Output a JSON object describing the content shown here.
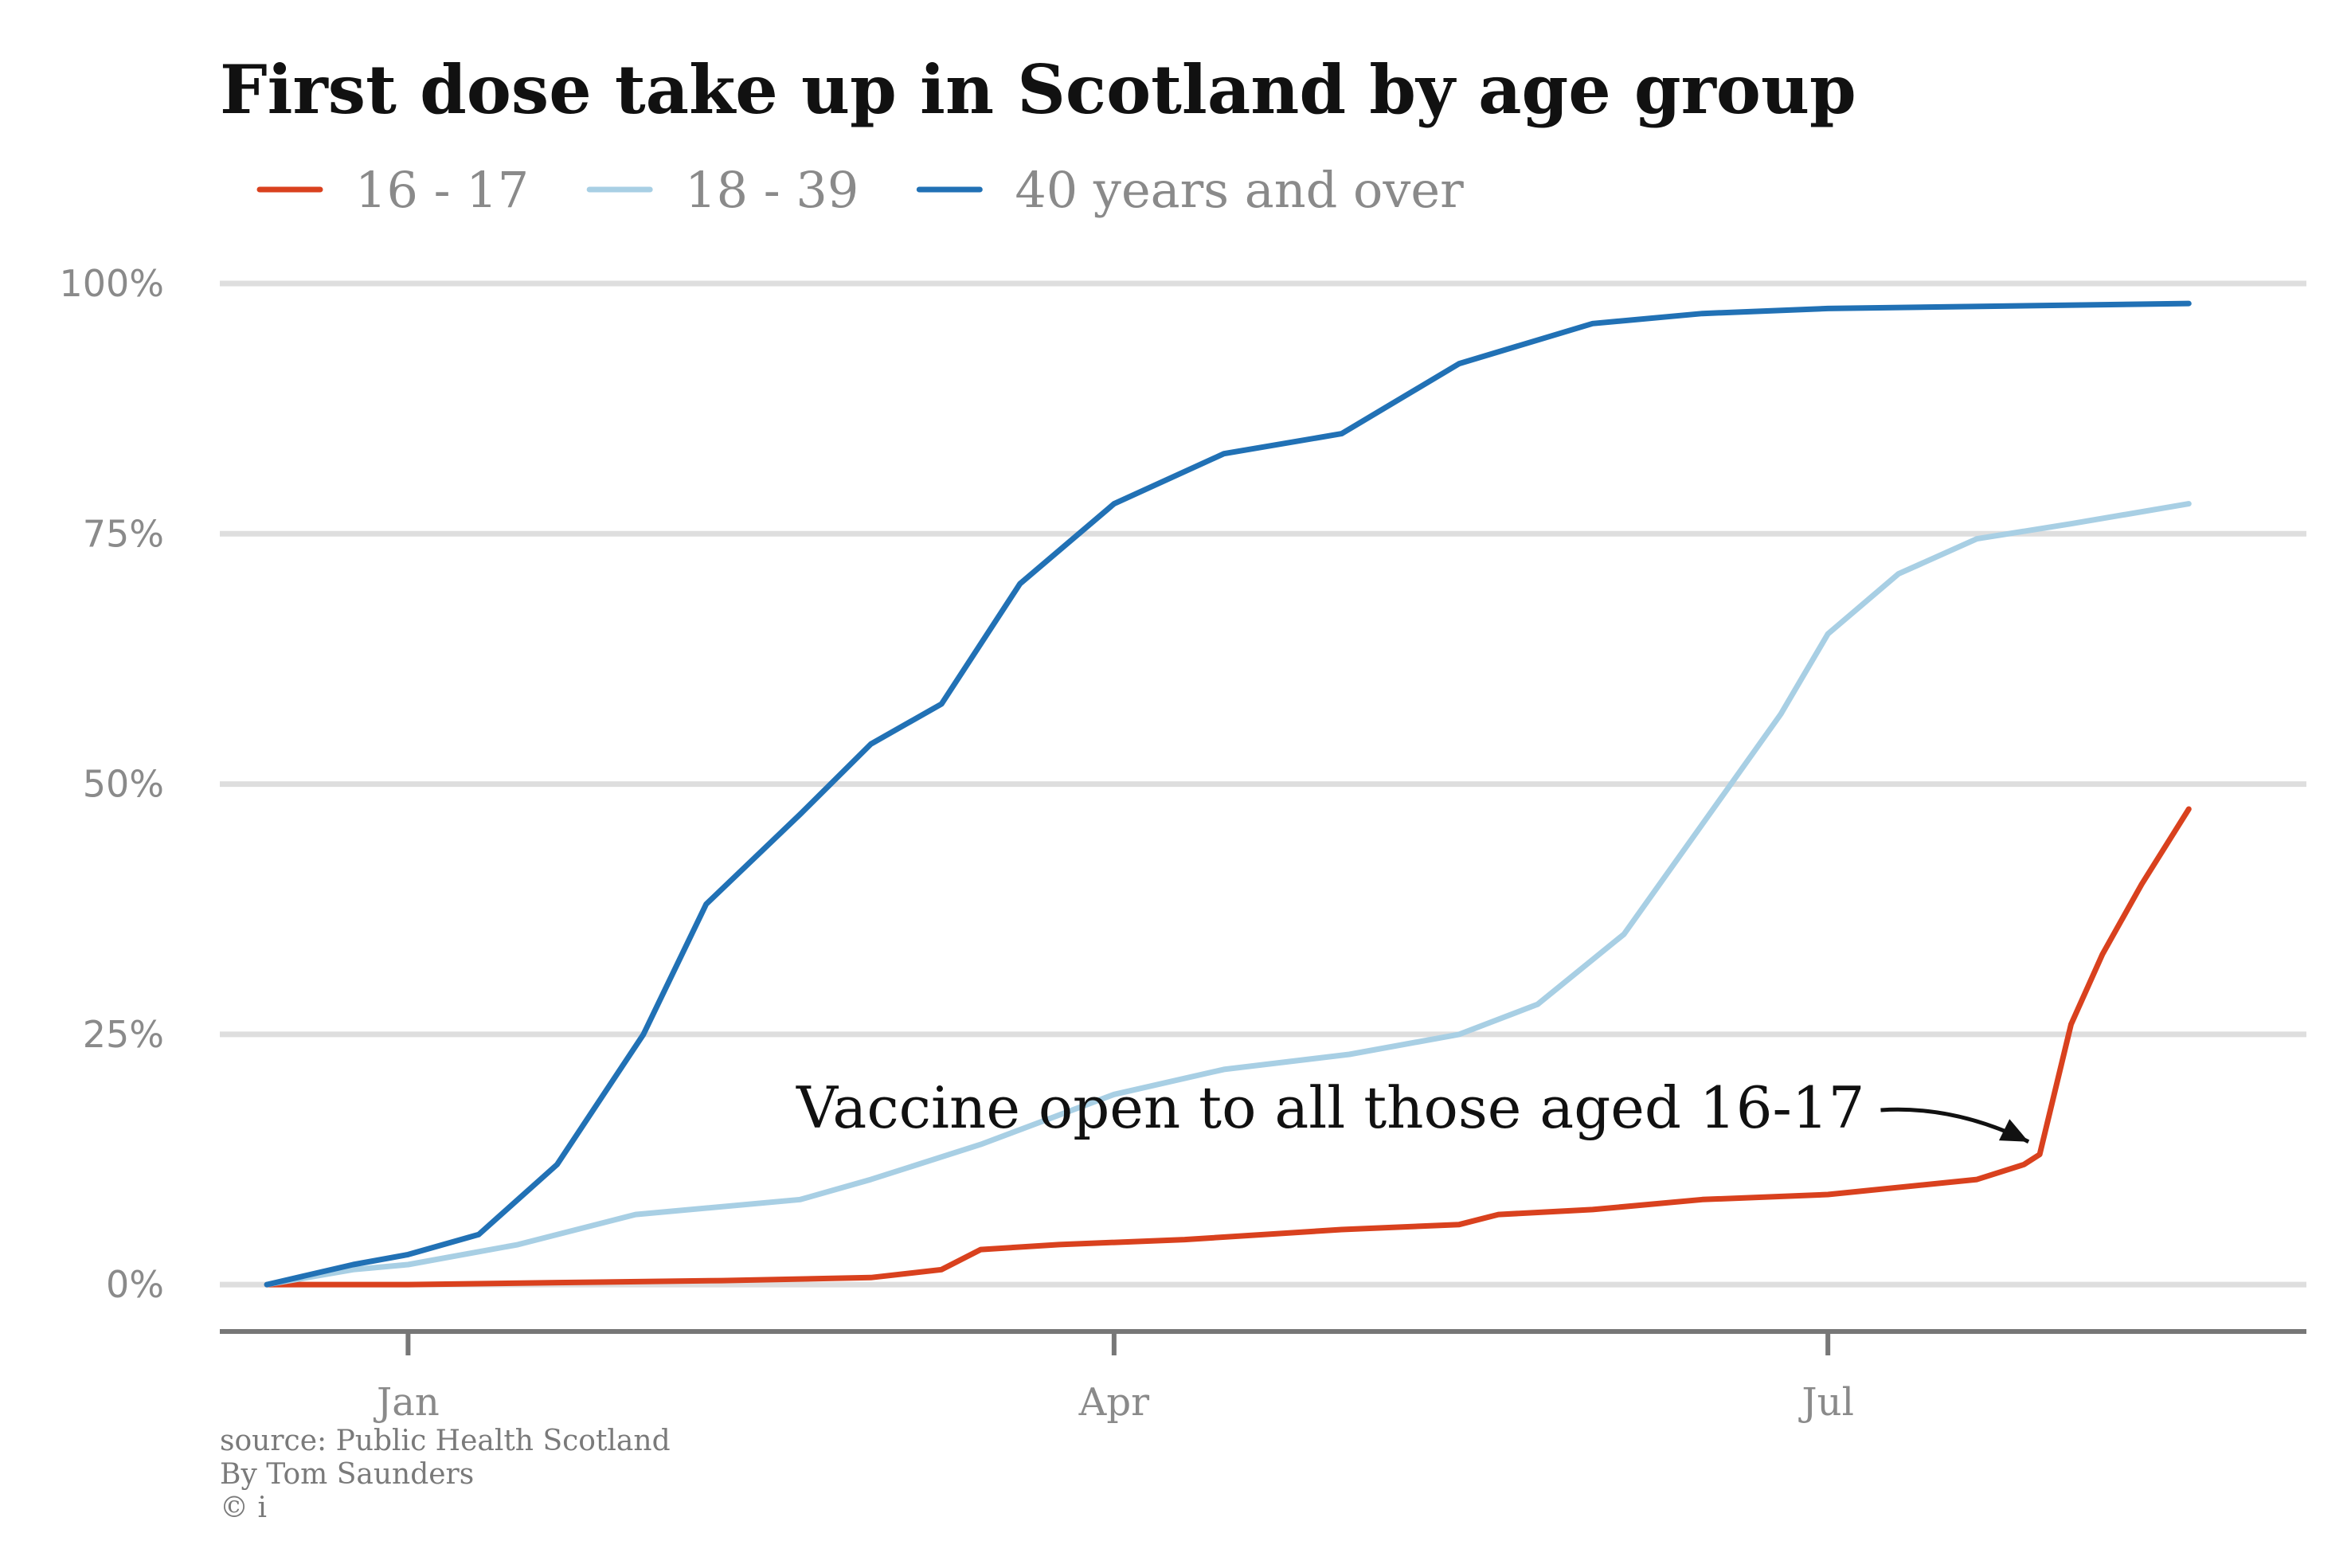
{
  "chart_data": {
    "type": "line",
    "title": "First dose take up in Scotland by age group",
    "xlabel": "",
    "ylabel": "",
    "x_ticks": [
      {
        "date": "2021-01-01",
        "label": "Jan"
      },
      {
        "date": "2021-04-01",
        "label": "Apr"
      },
      {
        "date": "2021-07-01",
        "label": "Jul"
      }
    ],
    "xlim": [
      "2020-12-08",
      "2021-08-31"
    ],
    "y_ticks": [
      {
        "value": 0,
        "label": "0%"
      },
      {
        "value": 25,
        "label": "25%"
      },
      {
        "value": 50,
        "label": "50%"
      },
      {
        "value": 75,
        "label": "75%"
      },
      {
        "value": 100,
        "label": "100%"
      }
    ],
    "ylim": [
      -5,
      100
    ],
    "grid": true,
    "legend_position": "top-left",
    "series": [
      {
        "name": "16 - 17",
        "color": "#d9411e",
        "points": [
          [
            "2020-12-14",
            0
          ],
          [
            "2021-01-01",
            0
          ],
          [
            "2021-01-20",
            0.2
          ],
          [
            "2021-02-10",
            0.4
          ],
          [
            "2021-03-01",
            0.7
          ],
          [
            "2021-03-10",
            1.5
          ],
          [
            "2021-03-15",
            3.5
          ],
          [
            "2021-03-25",
            4.0
          ],
          [
            "2021-04-10",
            4.5
          ],
          [
            "2021-04-30",
            5.5
          ],
          [
            "2021-05-15",
            6.0
          ],
          [
            "2021-05-20",
            7.0
          ],
          [
            "2021-06-01",
            7.5
          ],
          [
            "2021-06-15",
            8.5
          ],
          [
            "2021-07-01",
            9.0
          ],
          [
            "2021-07-20",
            10.5
          ],
          [
            "2021-07-26",
            12.0
          ],
          [
            "2021-07-28",
            13.0
          ],
          [
            "2021-08-01",
            26.0
          ],
          [
            "2021-08-05",
            33.0
          ],
          [
            "2021-08-10",
            40.0
          ],
          [
            "2021-08-16",
            47.5
          ]
        ]
      },
      {
        "name": "18 - 39",
        "color": "#a8cfe4",
        "points": [
          [
            "2020-12-14",
            0
          ],
          [
            "2020-12-25",
            1.5
          ],
          [
            "2021-01-01",
            2.0
          ],
          [
            "2021-01-15",
            4.0
          ],
          [
            "2021-01-30",
            7.0
          ],
          [
            "2021-02-20",
            8.5
          ],
          [
            "2021-03-01",
            10.5
          ],
          [
            "2021-03-15",
            14.0
          ],
          [
            "2021-04-01",
            19.0
          ],
          [
            "2021-04-15",
            21.5
          ],
          [
            "2021-05-01",
            23.0
          ],
          [
            "2021-05-15",
            25.0
          ],
          [
            "2021-05-25",
            28.0
          ],
          [
            "2021-06-05",
            35.0
          ],
          [
            "2021-06-15",
            46.0
          ],
          [
            "2021-06-25",
            57.0
          ],
          [
            "2021-07-01",
            65.0
          ],
          [
            "2021-07-10",
            71.0
          ],
          [
            "2021-07-20",
            74.5
          ],
          [
            "2021-08-01",
            76.0
          ],
          [
            "2021-08-16",
            78.0
          ]
        ]
      },
      {
        "name": "40 years and over",
        "color": "#2171b5",
        "points": [
          [
            "2020-12-14",
            0
          ],
          [
            "2020-12-25",
            2.0
          ],
          [
            "2021-01-01",
            3.0
          ],
          [
            "2021-01-10",
            5.0
          ],
          [
            "2021-01-20",
            12.0
          ],
          [
            "2021-01-31",
            25.0
          ],
          [
            "2021-02-08",
            38.0
          ],
          [
            "2021-02-20",
            47.0
          ],
          [
            "2021-03-01",
            54.0
          ],
          [
            "2021-03-10",
            58.0
          ],
          [
            "2021-03-20",
            70.0
          ],
          [
            "2021-04-01",
            78.0
          ],
          [
            "2021-04-15",
            83.0
          ],
          [
            "2021-04-30",
            85.0
          ],
          [
            "2021-05-15",
            92.0
          ],
          [
            "2021-06-01",
            96.0
          ],
          [
            "2021-06-15",
            97.0
          ],
          [
            "2021-07-01",
            97.5
          ],
          [
            "2021-08-16",
            98.0
          ]
        ]
      }
    ],
    "annotation": {
      "text": "Vaccine open to all those aged 16-17",
      "date": "2021-07-28",
      "value": 13.0
    }
  },
  "footer": {
    "source": "source: Public Health Scotland",
    "author": "By Tom Saunders",
    "copyright": "© i"
  }
}
